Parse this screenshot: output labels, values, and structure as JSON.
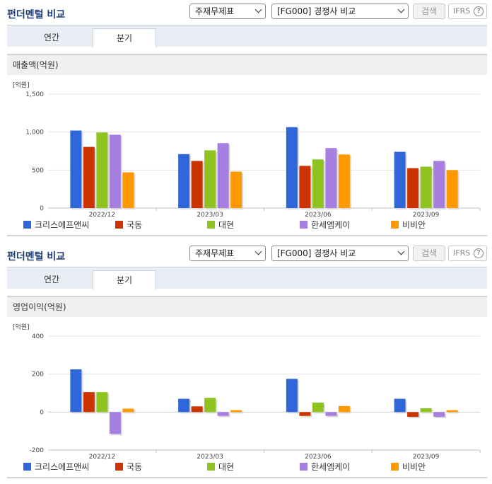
{
  "colors": {
    "series": [
      "#2f66d9",
      "#cc3300",
      "#8fc31f",
      "#a67fe0",
      "#ff9900"
    ],
    "title": "#1e3d73"
  },
  "panels": [
    {
      "title": "펀더멘털 비교",
      "select_report": "주재무제표",
      "select_compare": "[FG000] 경쟁사 비교",
      "search_label": "검색",
      "ifrs_label": "IFRS",
      "help_glyph": "?",
      "tabs": [
        {
          "label": "연간"
        },
        {
          "label": "분기"
        }
      ],
      "chart_title": "매출액(억원)",
      "chart_data": {
        "type": "bar",
        "unit_label": "[억원]",
        "categories": [
          "2022/12",
          "2023/03",
          "2023/06",
          "2023/09"
        ],
        "ylim": [
          0,
          1500
        ],
        "yticks": [
          0,
          500,
          1000,
          1500
        ],
        "ytick_labels": [
          "0",
          "500",
          "1,000",
          "1,500"
        ],
        "grid": true,
        "legend_position": "bottom",
        "series": [
          {
            "name": "크리스에프앤씨",
            "values": [
              1020,
              710,
              1065,
              740
            ]
          },
          {
            "name": "국동",
            "values": [
              805,
              620,
              555,
              525
            ]
          },
          {
            "name": "대현",
            "values": [
              995,
              760,
              640,
              545
            ]
          },
          {
            "name": "한세엠케이",
            "values": [
              965,
              855,
              790,
              620
            ]
          },
          {
            "name": "비비안",
            "values": [
              470,
              480,
              705,
              500
            ]
          }
        ]
      }
    },
    {
      "title": "펀더멘털 비교",
      "select_report": "주재무제표",
      "select_compare": "[FG000] 경쟁사 비교",
      "search_label": "검색",
      "ifrs_label": "IFRS",
      "help_glyph": "?",
      "tabs": [
        {
          "label": "연간"
        },
        {
          "label": "분기"
        }
      ],
      "chart_title": "영업이익(억원)",
      "chart_data": {
        "type": "bar",
        "unit_label": "[억원]",
        "categories": [
          "2022/12",
          "2023/03",
          "2023/06",
          "2023/09"
        ],
        "ylim": [
          -200,
          400
        ],
        "yticks": [
          -200,
          0,
          200,
          400
        ],
        "ytick_labels": [
          "-200",
          "0",
          "200",
          "400"
        ],
        "grid": true,
        "legend_position": "bottom",
        "series": [
          {
            "name": "크리스에프앤씨",
            "values": [
              225,
              70,
              175,
              70
            ]
          },
          {
            "name": "국동",
            "values": [
              105,
              30,
              -20,
              -25
            ]
          },
          {
            "name": "대현",
            "values": [
              105,
              75,
              50,
              20
            ]
          },
          {
            "name": "한세엠케이",
            "values": [
              -115,
              -20,
              -20,
              -25
            ]
          },
          {
            "name": "비비안",
            "values": [
              18,
              10,
              32,
              10
            ]
          }
        ]
      }
    }
  ]
}
